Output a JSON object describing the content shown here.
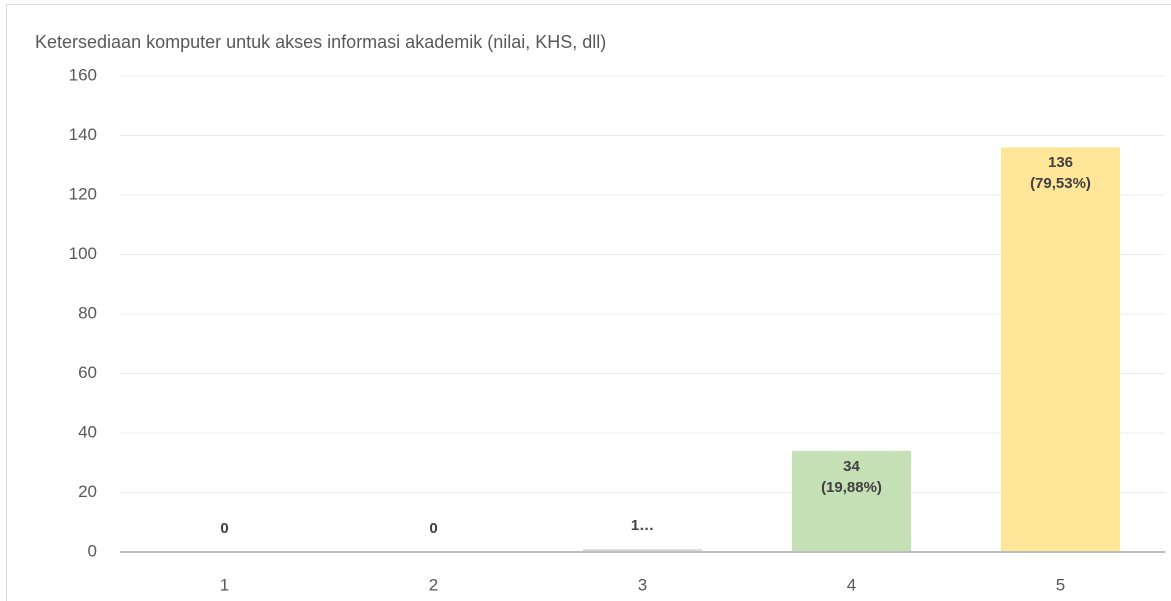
{
  "chart_data": {
    "type": "bar",
    "title": "Ketersediaan komputer untuk akses informasi akademik (nilai, KHS, dll)",
    "categories": [
      "1",
      "2",
      "3",
      "4",
      "5"
    ],
    "values": [
      0,
      0,
      1,
      34,
      136
    ],
    "value_labels": [
      "0",
      "0",
      "1…",
      "34\n(19,88%)",
      "136\n(79,53%)"
    ],
    "colors": [
      "#b4c7e7",
      "#f8cbad",
      "#dbdbdb",
      "#c5e0b4",
      "#ffe699"
    ],
    "ylim": [
      0,
      160
    ],
    "yticks": [
      0,
      20,
      40,
      60,
      80,
      100,
      120,
      140,
      160
    ],
    "grid": true
  }
}
